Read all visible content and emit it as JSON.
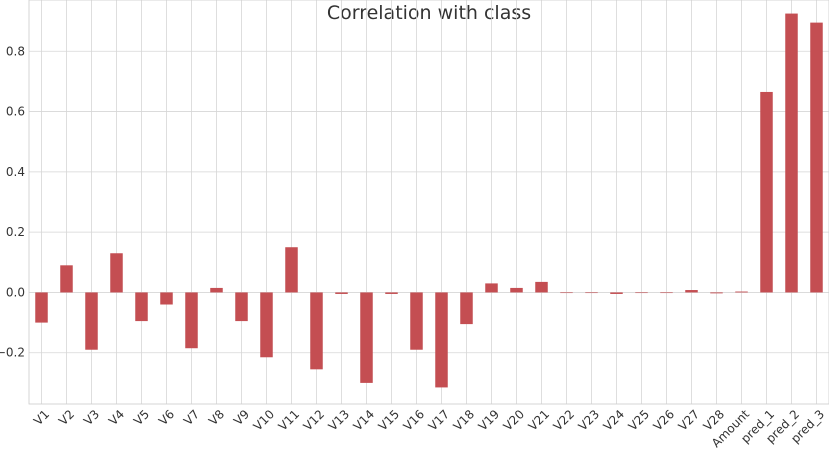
{
  "chart_data": {
    "type": "bar",
    "title": "Correlation with class",
    "xlabel": "",
    "ylabel": "",
    "ylim": [
      -0.37,
      0.97
    ],
    "yticks": [
      -0.2,
      0.0,
      0.2,
      0.4,
      0.6,
      0.8
    ],
    "ytick_labels": [
      "−0.2",
      "0.0",
      "0.2",
      "0.4",
      "0.6",
      "0.8"
    ],
    "grid": true,
    "bar_color": "#c44e52",
    "categories": [
      "V1",
      "V2",
      "V3",
      "V4",
      "V5",
      "V6",
      "V7",
      "V8",
      "V9",
      "V10",
      "V11",
      "V12",
      "V13",
      "V14",
      "V15",
      "V16",
      "V17",
      "V18",
      "V19",
      "V20",
      "V21",
      "V22",
      "V23",
      "V24",
      "V25",
      "V26",
      "V27",
      "V28",
      "Amount",
      "pred_1",
      "pred_2",
      "pred_3"
    ],
    "values": [
      -0.1,
      0.09,
      -0.19,
      0.13,
      -0.095,
      -0.04,
      -0.185,
      0.015,
      -0.095,
      -0.215,
      0.15,
      -0.255,
      -0.005,
      -0.3,
      -0.005,
      -0.19,
      -0.315,
      -0.105,
      0.03,
      0.015,
      0.035,
      0.0,
      0.0,
      -0.005,
      0.0,
      0.0,
      0.008,
      -0.003,
      0.003,
      0.665,
      0.925,
      0.895
    ]
  }
}
